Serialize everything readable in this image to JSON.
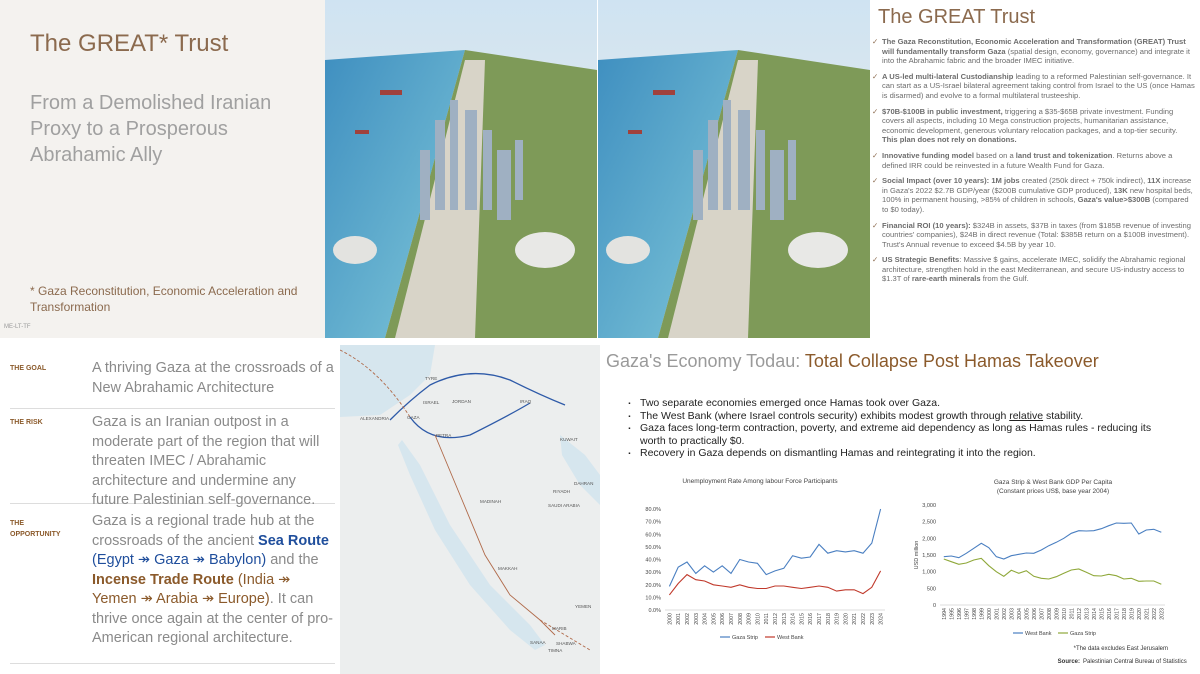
{
  "intro": {
    "title": "The GREAT* Trust",
    "subtitle": "From a Demolished Iranian Proxy to a Prosperous Abrahamic Ally",
    "footnote": "* Gaza Reconstitution, Economic Acceleration and Transformation",
    "code": "ME-LT-TF"
  },
  "trust": {
    "title": "The GREAT Trust",
    "bullets": [
      [
        {
          "text": "The Gaza Reconstitution, Economic Acceleration and Transformation (GREAT) Trust will fundamentally transform Gaza",
          "bold": true
        },
        {
          "text": " (spatial design, economy, governance) and integrate it into the Abrahamic fabric and the broader IMEC initiative."
        }
      ],
      [
        {
          "text": "A US-led multi-lateral Custodianship",
          "bold": true
        },
        {
          "text": " leading to a reformed Palestinian self-governance. It can start as a US-Israel bilateral agreement taking control from Israel to the US (once Hamas is disarmed) and evolve to a formal multilateral trusteeship."
        }
      ],
      [
        {
          "text": "$70B-$100B in public investment,",
          "bold": true
        },
        {
          "text": " triggering a $35-$65B private investment. Funding covers all aspects, including 10 Mega construction projects, humanitarian assistance, economic development, generous voluntary relocation packages, and a top-tier security. "
        },
        {
          "text": "This plan does not rely on donations.",
          "bold": true
        }
      ],
      [
        {
          "text": "Innovative funding model",
          "bold": true
        },
        {
          "text": " based on a "
        },
        {
          "text": "land trust and tokenization",
          "bold": true
        },
        {
          "text": ". Returns above a defined IRR could be reinvested in a future Wealth Fund for Gaza."
        }
      ],
      [
        {
          "text": "Social Impact (over 10 years): ",
          "bold": true
        },
        {
          "text": "1M jobs",
          "bold": true
        },
        {
          "text": " created (250k direct + 750k indirect), "
        },
        {
          "text": "11X",
          "bold": true
        },
        {
          "text": " increase in Gaza's 2022 $2.7B GDP/year ($200B cumulative GDP produced), "
        },
        {
          "text": "13K",
          "bold": true
        },
        {
          "text": " new hospital beds, 100% in permanent housing, >85% of children in schools, "
        },
        {
          "text": "Gaza's value>$300B",
          "bold": true
        },
        {
          "text": " (compared to $0 today)."
        }
      ],
      [
        {
          "text": "Financial ROI (10 years): ",
          "bold": true
        },
        {
          "text": "$324B in assets, $37B in taxes (from $185B revenue of investing countries' companies), $24B in direct revenue (Total: $385B return on a $100B investment). Trust's Annual revenue to exceed $4.5B by year 10."
        }
      ],
      [
        {
          "text": "US Strategic Benefits",
          "bold": true
        },
        {
          "text": ": Massive $ gains, accelerate IMEC, solidify the Abrahamic regional architecture, strengthen hold in the east Mediterranean, and secure US-industry access to $1.3T of "
        },
        {
          "text": "rare-earth minerals",
          "bold": true
        },
        {
          "text": " from the Gulf."
        }
      ]
    ]
  },
  "pillars": [
    {
      "label": "THE GOAL",
      "text": [
        {
          "text": "A thriving Gaza at the crossroads of a New Abrahamic Architecture"
        }
      ]
    },
    {
      "label": "THE RISK",
      "text": [
        {
          "text": "Gaza is an Iranian outpost in a moderate part of the region that will threaten IMEC / Abrahamic architecture and undermine any future Palestinian self-governance."
        }
      ]
    },
    {
      "label": "THE OPPORTUNITY",
      "text": [
        {
          "text": "Gaza is a regional trade hub at the crossroads of the ancient "
        },
        {
          "text": "Sea Route",
          "bold": true,
          "color": "#1f4e9c"
        },
        {
          "text": " (Egypt ↠ Gaza ↠ Babylon)",
          "color": "#1f4e9c"
        },
        {
          "text": " and the "
        },
        {
          "text": "Incense Trade Route",
          "bold": true,
          "color": "#8b5a2b"
        },
        {
          "text": " (India ↠ Yemen ↠ Arabia ↠ Europe)",
          "color": "#8b5a2b"
        },
        {
          "text": ". It can thrive once again at the center of pro-American regional architecture."
        }
      ]
    }
  ],
  "map": {
    "labels": [
      "TYRE",
      "ISRAEL",
      "JORDAN",
      "IRAQ",
      "ALEXANDRIA",
      "GAZA",
      "PETRA",
      "KUWAIT",
      "MADINAH",
      "RIYADH",
      "SAUDI ARABIA",
      "DAHRAN",
      "MAKKAH",
      "YEMEN",
      "MARIB",
      "SANAA",
      "SHABWA",
      "TIMNA"
    ]
  },
  "economy": {
    "heading": [
      {
        "text": "Gaza's Economy Todau: ",
        "color": "#9a9a9a"
      },
      {
        "text": "Total Collapse Post Hamas Takeover",
        "color": "#8b5a2b"
      }
    ],
    "bullets": [
      [
        {
          "text": "Two separate economies emerged once Hamas took over Gaza."
        }
      ],
      [
        {
          "text": "The West Bank (where Israel controls security) exhibits modest growth through "
        },
        {
          "text": "relative",
          "underline": true
        },
        {
          "text": " stability."
        }
      ],
      [
        {
          "text": "Gaza faces long-term contraction, poverty, and extreme aid dependency as long as Hamas rules - reducing its worth to practically $0."
        }
      ],
      [
        {
          "text": "Recovery in Gaza depends on dismantling Hamas and reintegrating it into the region."
        }
      ]
    ],
    "note": "*The data excludes East Jerusalem",
    "source_label": "Source:",
    "source": "Palestinian Central Bureau of Statistics"
  },
  "chart_data": [
    {
      "type": "line",
      "title": "Unemployment Rate Among labour Force Participants",
      "categories": [
        "2000",
        "2001",
        "2002",
        "2003",
        "2004",
        "2005",
        "2006",
        "2007",
        "2008",
        "2009",
        "2010",
        "2011",
        "2012",
        "2013",
        "2014",
        "2015",
        "2016",
        "2017",
        "2018",
        "2019",
        "2020",
        "2021",
        "2022",
        "2023",
        "2024"
      ],
      "series": [
        {
          "name": "Gaza Strip",
          "color": "#4a7fc1",
          "values": [
            18.7,
            34,
            38,
            29,
            35,
            30,
            35,
            29,
            40,
            38,
            37,
            28,
            31,
            33,
            43,
            41,
            42,
            52,
            45,
            47,
            46,
            47,
            45,
            53,
            80
          ]
        },
        {
          "name": "West Bank",
          "color": "#c0392b",
          "values": [
            12,
            21,
            28,
            24,
            23,
            20,
            19,
            18,
            20,
            18,
            17,
            17,
            19,
            19,
            18,
            17,
            18,
            19,
            18,
            15,
            16,
            16,
            13,
            18,
            31
          ]
        }
      ],
      "ylim": [
        0,
        80
      ],
      "yticks": [
        {
          "value": 0,
          "label": "0.0%"
        },
        {
          "value": 10,
          "label": "10.0%"
        },
        {
          "value": 20,
          "label": "20.0%"
        },
        {
          "value": 30,
          "label": "30.0%"
        },
        {
          "value": 40,
          "label": "40.0%"
        },
        {
          "value": 50,
          "label": "50.0%"
        },
        {
          "value": 60,
          "label": "60.0%"
        },
        {
          "value": 70,
          "label": "70.0%"
        },
        {
          "value": 80,
          "label": "80.0%"
        }
      ],
      "grid": false
    },
    {
      "type": "line",
      "title": "Gaza Strip & West Bank GDP Per Capita",
      "subtitle": "(Constant prices US$, base year 2004)",
      "ylabel": "USD million",
      "categories": [
        "1994",
        "1995",
        "1996",
        "1997",
        "1998",
        "1999",
        "2000",
        "2001",
        "2002",
        "2003",
        "2004",
        "2005",
        "2006",
        "2007",
        "2008",
        "2009",
        "2010",
        "2011",
        "2012",
        "2013",
        "2014",
        "2015",
        "2016",
        "2017",
        "2018",
        "2019",
        "2020",
        "2021",
        "2022",
        "2023"
      ],
      "series": [
        {
          "name": "West Bank",
          "color": "#4a7fc1",
          "values": [
            1450,
            1470,
            1420,
            1550,
            1700,
            1850,
            1720,
            1450,
            1380,
            1480,
            1520,
            1560,
            1550,
            1650,
            1780,
            1880,
            2000,
            2150,
            2230,
            2220,
            2230,
            2290,
            2380,
            2460,
            2450,
            2460,
            2130,
            2250,
            2270,
            2180
          ]
        },
        {
          "name": "Gaza Strip",
          "color": "#8fa83a",
          "values": [
            1380,
            1300,
            1220,
            1260,
            1350,
            1400,
            1180,
            1000,
            860,
            1040,
            950,
            1030,
            860,
            800,
            780,
            850,
            950,
            1050,
            1080,
            980,
            880,
            870,
            920,
            880,
            780,
            800,
            710,
            720,
            720,
            620
          ]
        }
      ],
      "ylim": [
        0,
        3000
      ],
      "yticks": [
        0,
        500,
        {
          "value": 1000,
          "label": "1,000"
        },
        {
          "value": 1500,
          "label": "1,500"
        },
        {
          "value": 2000,
          "label": "2,000"
        },
        {
          "value": 2500,
          "label": "2,500"
        },
        {
          "value": 3000,
          "label": "3,000"
        }
      ],
      "grid": false
    }
  ]
}
